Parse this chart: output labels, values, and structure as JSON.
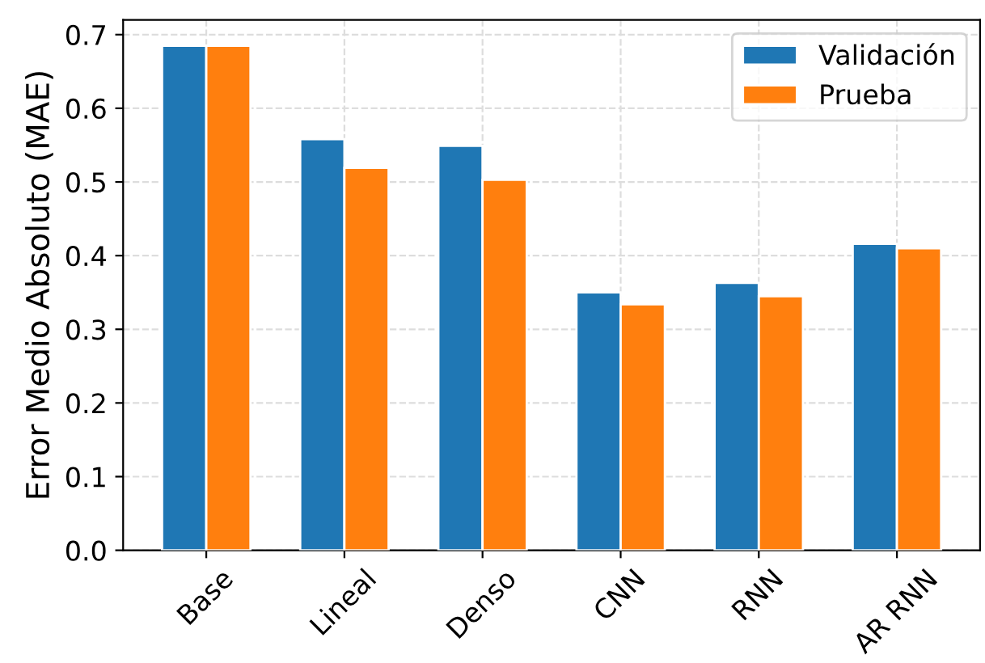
{
  "chart_data": {
    "type": "bar",
    "ylabel": "Error Medio Absoluto (MAE)",
    "categories": [
      "Base",
      "Lineal",
      "Denso",
      "CNN",
      "RNN",
      "AR RNN"
    ],
    "series": [
      {
        "name": "Validación",
        "color": "#1f77b4",
        "values": [
          0.685,
          0.558,
          0.549,
          0.35,
          0.363,
          0.416
        ]
      },
      {
        "name": "Prueba",
        "color": "#ff7f0e",
        "values": [
          0.685,
          0.519,
          0.503,
          0.334,
          0.345,
          0.41
        ]
      }
    ],
    "ylim": [
      0,
      0.72
    ],
    "yticks": [
      {
        "value": 0,
        "label": "0.0"
      },
      0.1,
      0.2,
      0.3,
      0.4,
      0.5,
      0.6,
      0.7
    ],
    "grid": true,
    "legend": "top right"
  }
}
